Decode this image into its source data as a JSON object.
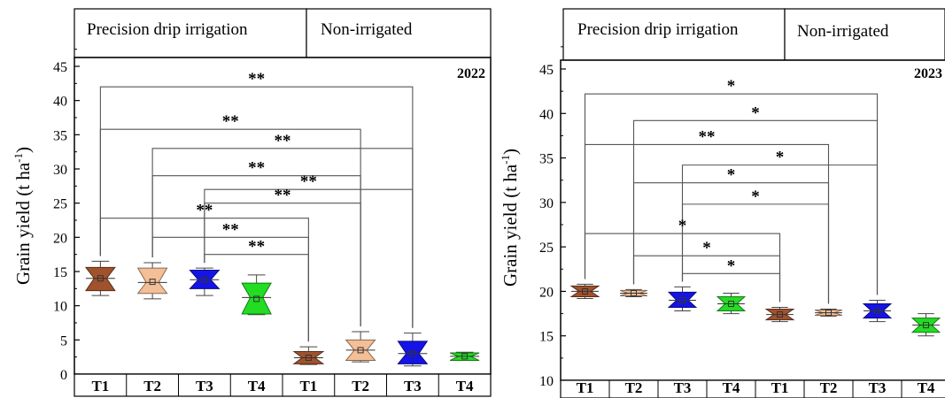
{
  "colors": {
    "T1": "#a0522d",
    "T2": "#f4bf96",
    "T3": "#1414e6",
    "T4": "#22dd22",
    "axis": "#000000"
  },
  "chart_data": [
    {
      "type": "box",
      "year_label": "2022",
      "ylabel": "Grain yield (t ha-1)",
      "ylim": [
        0,
        45
      ],
      "yticks": [
        0,
        5,
        10,
        15,
        20,
        25,
        30,
        35,
        40,
        45
      ],
      "group_headers": [
        "Precision drip irrigation",
        "Non-irrigated"
      ],
      "categories": [
        "T1",
        "T2",
        "T3",
        "T4",
        "T1",
        "T2",
        "T3",
        "T4"
      ],
      "boxes": [
        {
          "treatment": "T1",
          "q1": 12.2,
          "median": 14.0,
          "q3": 15.6,
          "min": 11.5,
          "max": 16.5,
          "mean": 14.0
        },
        {
          "treatment": "T2",
          "q1": 11.8,
          "median": 13.4,
          "q3": 15.5,
          "min": 11.0,
          "max": 16.3,
          "mean": 13.5
        },
        {
          "treatment": "T3",
          "q1": 12.5,
          "median": 13.8,
          "q3": 15.2,
          "min": 11.5,
          "max": 15.5,
          "mean": 13.8
        },
        {
          "treatment": "T4",
          "q1": 8.8,
          "median": 11.2,
          "q3": 13.3,
          "min": 8.7,
          "max": 14.5,
          "mean": 11.0
        },
        {
          "treatment": "T1",
          "q1": 1.5,
          "median": 2.4,
          "q3": 3.3,
          "min": 1.4,
          "max": 4.0,
          "mean": 2.4
        },
        {
          "treatment": "T2",
          "q1": 2.0,
          "median": 3.5,
          "q3": 5.0,
          "min": 1.8,
          "max": 6.2,
          "mean": 3.5
        },
        {
          "treatment": "T3",
          "q1": 1.5,
          "median": 3.0,
          "q3": 4.8,
          "min": 1.2,
          "max": 6.0,
          "mean": 3.0
        },
        {
          "treatment": "T4",
          "q1": 2.0,
          "median": 2.6,
          "q3": 3.1,
          "min": 2.0,
          "max": 3.2,
          "mean": 2.6
        }
      ],
      "significance": [
        {
          "from": 1,
          "to": 7,
          "y": 42.0,
          "label": "**"
        },
        {
          "from": 1,
          "to": 6,
          "y": 35.8,
          "label": "**"
        },
        {
          "from": 2,
          "to": 7,
          "y": 33.0,
          "label": "**"
        },
        {
          "from": 2,
          "to": 6,
          "y": 29.0,
          "label": "**"
        },
        {
          "from": 3,
          "to": 7,
          "y": 27.0,
          "label": "**"
        },
        {
          "from": 3,
          "to": 6,
          "y": 25.0,
          "label": "**"
        },
        {
          "from": 1,
          "to": 5,
          "y": 22.8,
          "label": "**"
        },
        {
          "from": 2,
          "to": 5,
          "y": 20.0,
          "label": "**"
        },
        {
          "from": 3,
          "to": 5,
          "y": 17.5,
          "label": "**"
        }
      ]
    },
    {
      "type": "box",
      "year_label": "2023",
      "ylabel": "Grain yield (t ha-1)",
      "ylim": [
        10,
        45
      ],
      "yticks": [
        10,
        15,
        20,
        25,
        30,
        35,
        40,
        45
      ],
      "group_headers": [
        "Precision drip irrigation",
        "Non-irrigated"
      ],
      "categories": [
        "T1",
        "T2",
        "T3",
        "T4",
        "T1",
        "T2",
        "T3",
        "T4"
      ],
      "boxes": [
        {
          "treatment": "T1",
          "q1": 19.4,
          "median": 20.0,
          "q3": 20.6,
          "min": 19.2,
          "max": 20.8,
          "mean": 20.0
        },
        {
          "treatment": "T2",
          "q1": 19.5,
          "median": 19.8,
          "q3": 20.1,
          "min": 19.4,
          "max": 20.2,
          "mean": 19.8
        },
        {
          "treatment": "T3",
          "q1": 18.2,
          "median": 19.0,
          "q3": 19.9,
          "min": 17.8,
          "max": 20.5,
          "mean": 19.0
        },
        {
          "treatment": "T4",
          "q1": 17.8,
          "median": 18.6,
          "q3": 19.4,
          "min": 17.5,
          "max": 19.8,
          "mean": 18.6
        },
        {
          "treatment": "T1",
          "q1": 16.8,
          "median": 17.4,
          "q3": 18.0,
          "min": 16.6,
          "max": 18.2,
          "mean": 17.4
        },
        {
          "treatment": "T2",
          "q1": 17.3,
          "median": 17.6,
          "q3": 17.9,
          "min": 17.2,
          "max": 18.0,
          "mean": 17.6
        },
        {
          "treatment": "T3",
          "q1": 17.0,
          "median": 17.8,
          "q3": 18.6,
          "min": 16.6,
          "max": 19.0,
          "mean": 17.8
        },
        {
          "treatment": "T4",
          "q1": 15.4,
          "median": 16.2,
          "q3": 17.0,
          "min": 15.0,
          "max": 17.5,
          "mean": 16.2
        }
      ],
      "significance": [
        {
          "from": 1,
          "to": 7,
          "y": 42.2,
          "label": "*"
        },
        {
          "from": 2,
          "to": 7,
          "y": 39.2,
          "label": "*"
        },
        {
          "from": 1,
          "to": 6,
          "y": 36.5,
          "label": "**"
        },
        {
          "from": 3,
          "to": 7,
          "y": 34.2,
          "label": "*"
        },
        {
          "from": 2,
          "to": 6,
          "y": 32.2,
          "label": "*"
        },
        {
          "from": 3,
          "to": 6,
          "y": 29.8,
          "label": "*"
        },
        {
          "from": 1,
          "to": 5,
          "y": 26.5,
          "label": "*"
        },
        {
          "from": 2,
          "to": 5,
          "y": 24.0,
          "label": "*"
        },
        {
          "from": 3,
          "to": 5,
          "y": 22.0,
          "label": "*"
        }
      ]
    }
  ]
}
